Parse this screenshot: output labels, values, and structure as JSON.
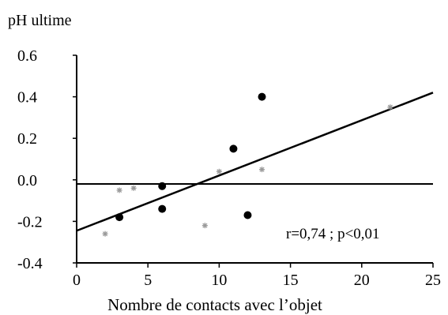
{
  "chart_data": {
    "type": "scatter",
    "title": "",
    "xlabel": "Nombre de contacts avec l’objet",
    "ylabel": "pH ultime",
    "xlim": [
      0,
      25
    ],
    "ylim": [
      -0.4,
      0.6
    ],
    "x_ticks": [
      "0",
      "5",
      "10",
      "15",
      "20",
      "25"
    ],
    "y_ticks": [
      "0.6",
      "0.4",
      "0.2",
      "0.0",
      "-0.2",
      "-0.4"
    ],
    "grid": false,
    "series": [
      {
        "marker": "filled-circle",
        "color": "#000000",
        "points": [
          {
            "x": 3,
            "y": -0.18
          },
          {
            "x": 6,
            "y": -0.03
          },
          {
            "x": 6,
            "y": -0.14
          },
          {
            "x": 11,
            "y": 0.15
          },
          {
            "x": 12,
            "y": -0.17
          },
          {
            "x": 13,
            "y": 0.4
          }
        ]
      },
      {
        "marker": "gray-star",
        "color": "#9a9a9a",
        "points": [
          {
            "x": 2,
            "y": -0.26
          },
          {
            "x": 3,
            "y": -0.05
          },
          {
            "x": 4,
            "y": -0.04
          },
          {
            "x": 9,
            "y": -0.22
          },
          {
            "x": 10,
            "y": 0.04
          },
          {
            "x": 13,
            "y": 0.05
          },
          {
            "x": 22,
            "y": 0.35
          }
        ]
      }
    ],
    "regression_line": {
      "x": [
        0,
        25
      ],
      "y": [
        -0.245,
        0.42
      ]
    },
    "reference_line_y": -0.02,
    "annotation": "r=0,74 ; p<0,01"
  }
}
